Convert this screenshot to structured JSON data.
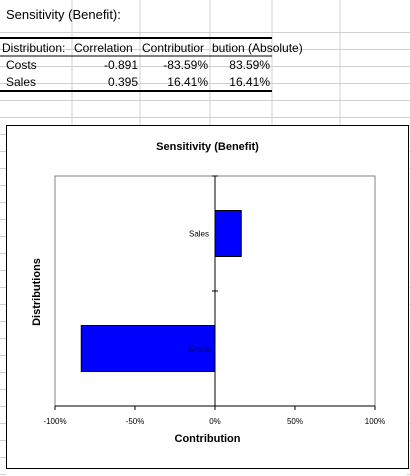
{
  "sheet": {
    "title": "Sensitivity (Benefit):",
    "headers": [
      "Distribution:",
      "Correlation",
      "Contribution",
      "Contribution (Absolute)"
    ],
    "header_display": [
      "Distribution:",
      "Correlation",
      "Contributior",
      "bution (Absolute)"
    ],
    "rows": [
      {
        "name": "Costs",
        "correlation": "-0.891",
        "contribution": "-83.59%",
        "absolute": "83.59%"
      },
      {
        "name": "Sales",
        "correlation": "0.395",
        "contribution": "16.41%",
        "absolute": "16.41%"
      }
    ]
  },
  "chart_data": {
    "type": "bar",
    "orientation": "horizontal",
    "title": "Sensitivity (Benefit)",
    "xlabel": "Contribution",
    "ylabel": "Distributions",
    "categories": [
      "Sales",
      "Costs"
    ],
    "values": [
      16.41,
      -83.59
    ],
    "xlim": [
      -100,
      100
    ],
    "xticks": [
      "-100%",
      "-50%",
      "0%",
      "50%",
      "100%"
    ],
    "bar_color": "#0000ff",
    "grid": false
  }
}
